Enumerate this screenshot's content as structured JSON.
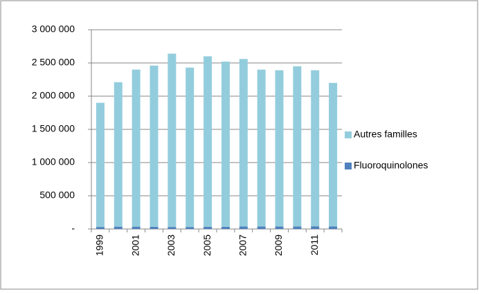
{
  "chart_data": {
    "type": "stacked_bar",
    "categories": [
      "1999",
      null,
      "2001",
      null,
      "2003",
      null,
      "2005",
      null,
      "2007",
      null,
      "2009",
      null,
      "2011",
      null
    ],
    "series": [
      {
        "name": "Fluoroquinolones",
        "color": "#4f81bd",
        "values": [
          30000,
          35000,
          35000,
          32000,
          30000,
          30000,
          32000,
          33000,
          38000,
          38000,
          37000,
          38000,
          40000,
          38000
        ]
      },
      {
        "name": "Autres familles",
        "color": "#93cddd",
        "values": [
          1870000,
          2175000,
          2365000,
          2428000,
          2610000,
          2400000,
          2568000,
          2487000,
          2522000,
          2362000,
          2353000,
          2412000,
          2350000,
          2162000
        ]
      }
    ],
    "ylim": [
      0,
      3000000
    ],
    "yticks": [
      {
        "value": 0,
        "label": "-"
      },
      {
        "value": 500000,
        "label": "500 000"
      },
      {
        "value": 1000000,
        "label": "1 000 000"
      },
      {
        "value": 1500000,
        "label": "1 500 000"
      },
      {
        "value": 2000000,
        "label": "2 000 000"
      },
      {
        "value": 2500000,
        "label": "2 500 000"
      },
      {
        "value": 3000000,
        "label": "3 000 000"
      }
    ],
    "grid": true,
    "legend": "right"
  }
}
